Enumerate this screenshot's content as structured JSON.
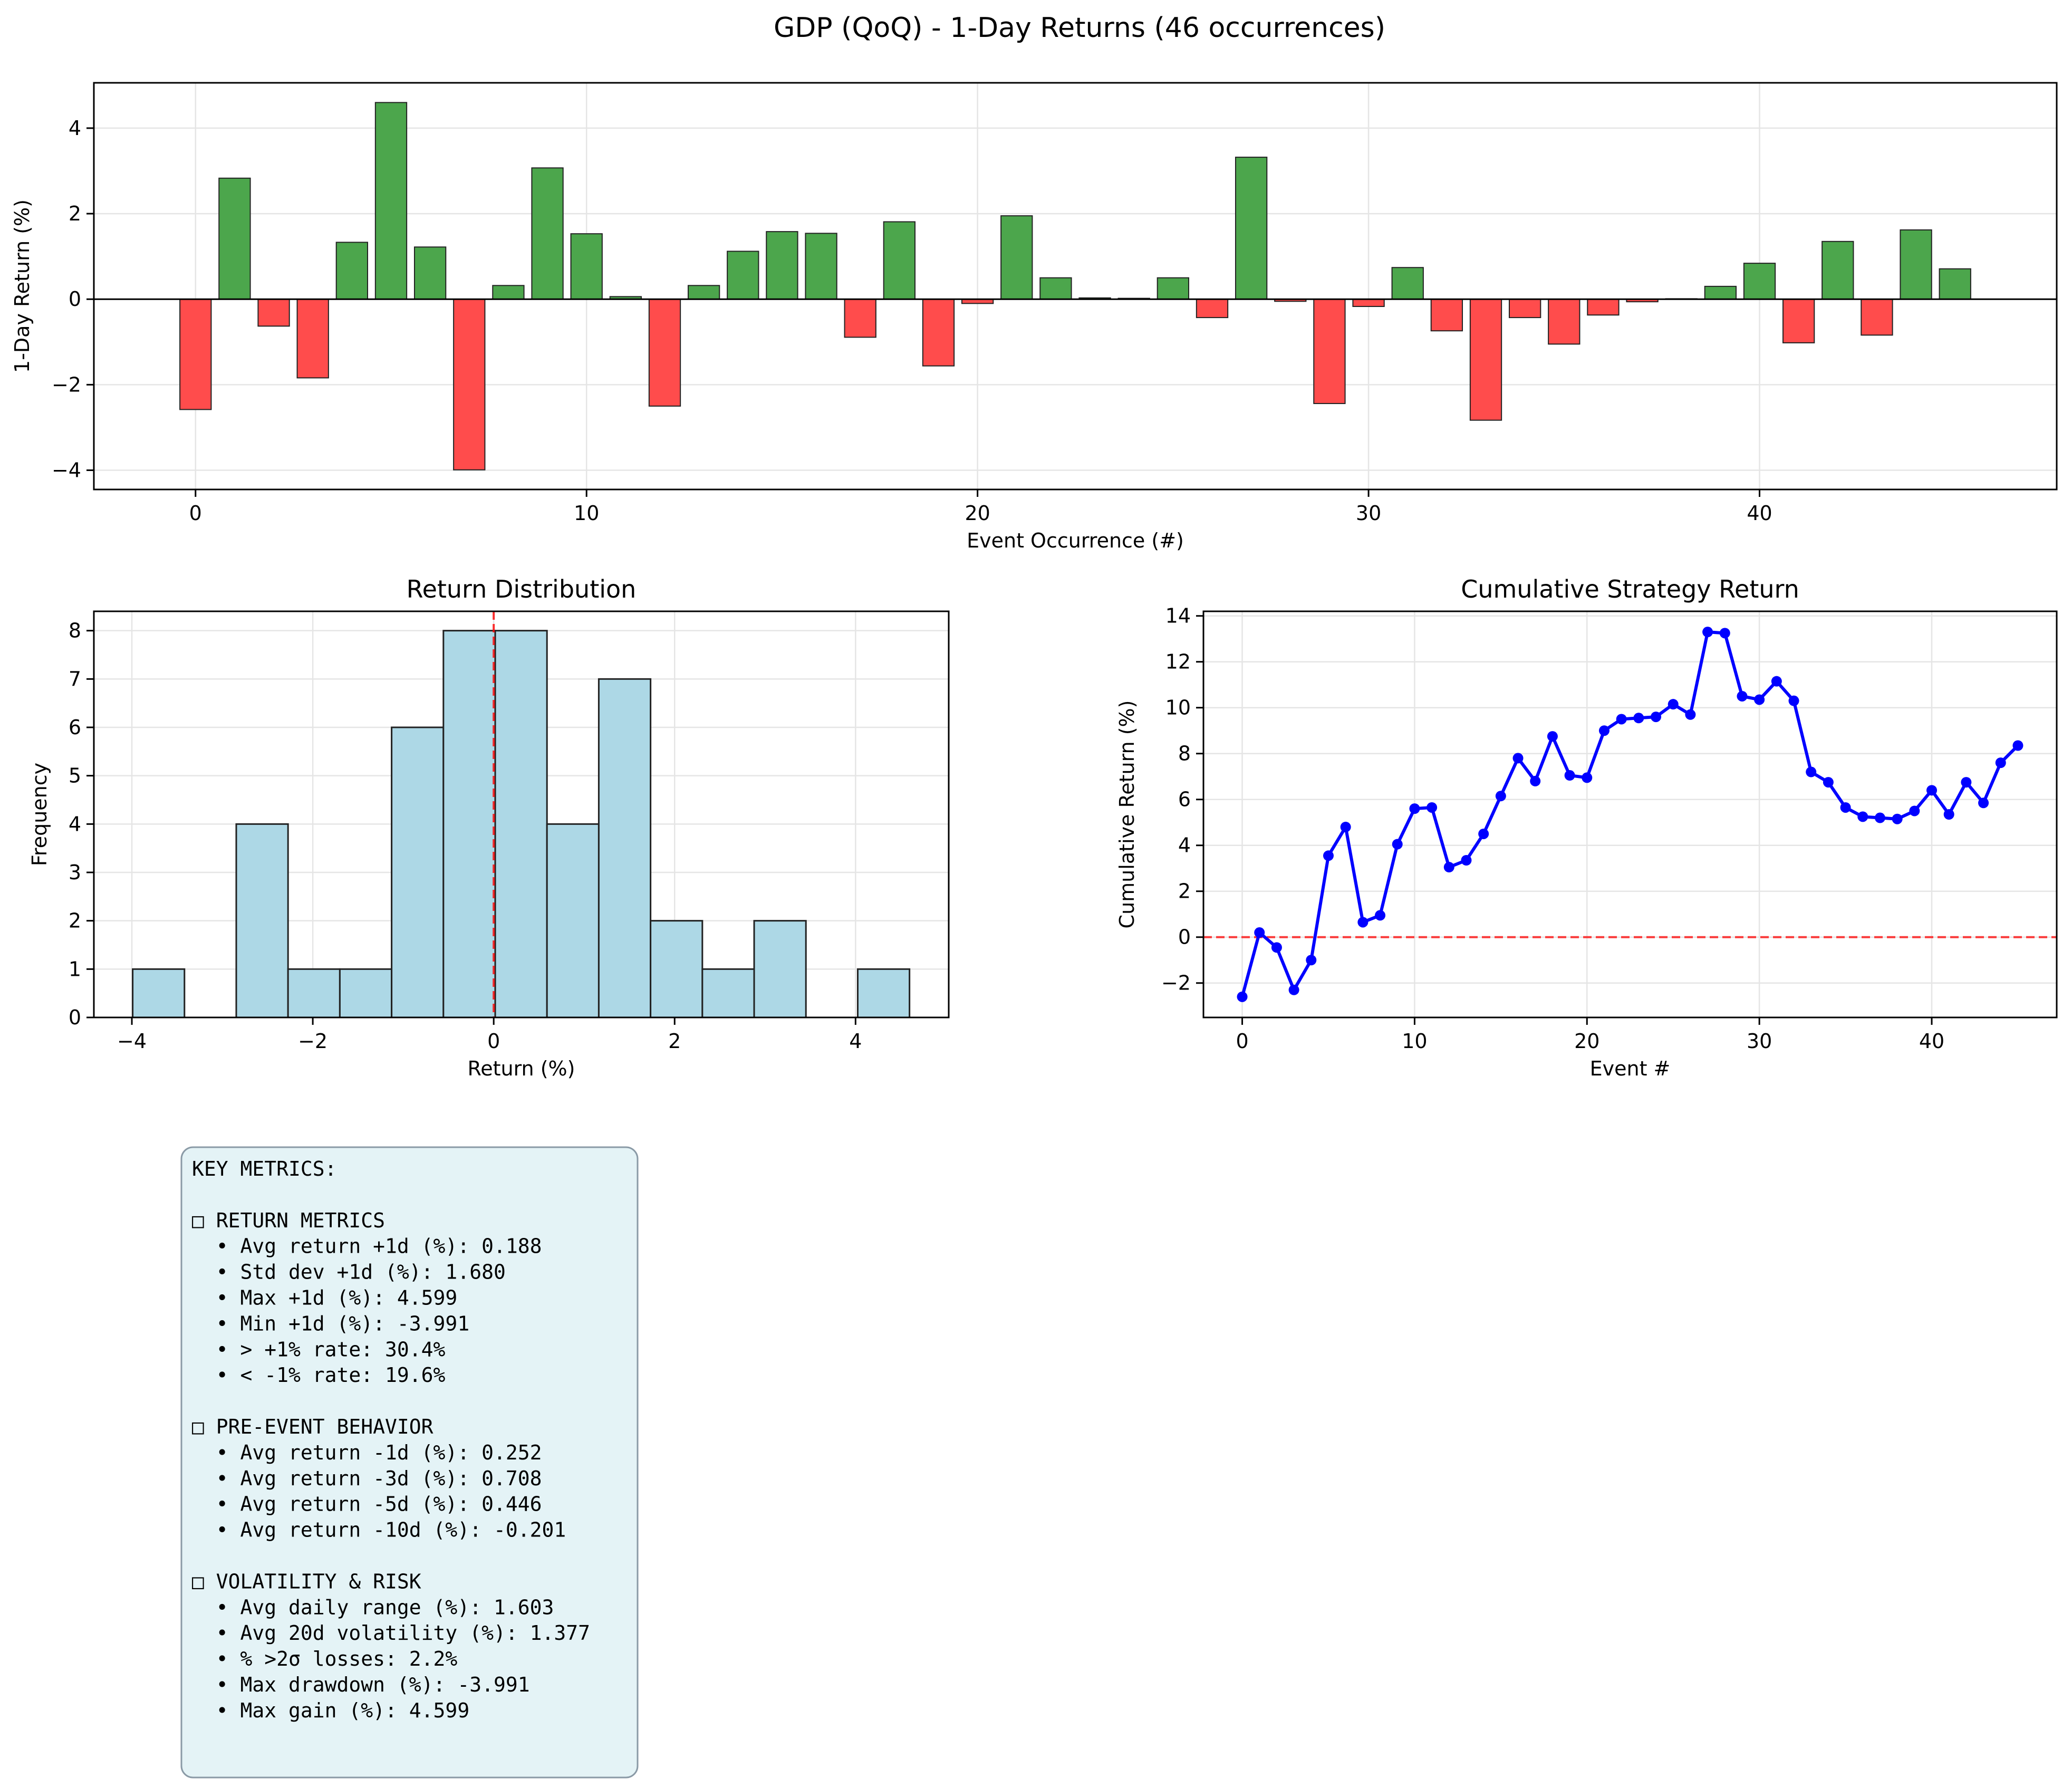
{
  "suptitle": "GDP (QoQ) - 1-Day Returns (46 occurrences)",
  "colors": {
    "positive": "#4ca64c",
    "negative": "#ff4c4c",
    "hist": "#add8e6",
    "line": "#0000ff",
    "ref": "#ff0000",
    "grid": "#e5e5e5",
    "metrics_bg": "#e4f3f6"
  },
  "chart_data": [
    {
      "type": "bar",
      "xlabel": "Event Occurrence (#)",
      "ylabel": "1-Day Return (%)",
      "xlim": [
        -2.6,
        47.6
      ],
      "ylim": [
        -4.45,
        5.06
      ],
      "xticks": [
        0,
        10,
        20,
        30,
        40
      ],
      "yticks": [
        -4,
        -2,
        0,
        2,
        4
      ],
      "x": [
        0,
        1,
        2,
        3,
        4,
        5,
        6,
        7,
        8,
        9,
        10,
        11,
        12,
        13,
        14,
        15,
        16,
        17,
        18,
        19,
        20,
        21,
        22,
        23,
        24,
        25,
        26,
        27,
        28,
        29,
        30,
        31,
        32,
        33,
        34,
        35,
        36,
        37,
        38,
        39,
        40,
        41,
        42,
        43,
        44,
        45
      ],
      "values": [
        -2.58,
        2.83,
        -0.63,
        -1.84,
        1.33,
        4.599,
        1.22,
        -3.991,
        0.32,
        3.07,
        1.53,
        0.06,
        -2.5,
        0.32,
        1.12,
        1.58,
        1.54,
        -0.89,
        1.81,
        -1.56,
        -0.1,
        1.95,
        0.5,
        0.03,
        0.02,
        0.5,
        -0.43,
        3.32,
        -0.05,
        -2.44,
        -0.17,
        0.74,
        -0.74,
        -2.83,
        -0.43,
        -1.05,
        -0.37,
        -0.06,
        0.01,
        0.3,
        0.84,
        -1.02,
        1.35,
        -0.84,
        1.62,
        0.71
      ],
      "grid": true
    },
    {
      "type": "histogram",
      "title": "Return Distribution",
      "xlabel": "Return (%)",
      "ylabel": "Frequency",
      "xlim": [
        -4.42,
        5.03
      ],
      "ylim": [
        0,
        8.4
      ],
      "xticks": [
        -4,
        -2,
        0,
        2,
        4
      ],
      "yticks": [
        0,
        1,
        2,
        3,
        4,
        5,
        6,
        7,
        8
      ],
      "bin_edges": [
        -3.991,
        -3.4185,
        -2.846,
        -2.2735,
        -1.701,
        -1.1285,
        -0.556,
        0.0165,
        0.589,
        1.1615,
        1.734,
        2.3065,
        2.879,
        3.4515,
        4.024,
        4.5965
      ],
      "counts": [
        1,
        0,
        4,
        1,
        1,
        6,
        8,
        8,
        4,
        7,
        2,
        1,
        2,
        0,
        1
      ],
      "vline": 0,
      "grid": true
    },
    {
      "type": "line",
      "title": "Cumulative Strategy Return",
      "xlabel": "Event #",
      "ylabel": "Cumulative Return (%)",
      "xlim": [
        -2.25,
        47.25
      ],
      "ylim": [
        -3.5,
        14.2
      ],
      "xticks": [
        0,
        10,
        20,
        30,
        40
      ],
      "yticks": [
        -2,
        0,
        2,
        4,
        6,
        8,
        10,
        12,
        14
      ],
      "x": [
        0,
        1,
        2,
        3,
        4,
        5,
        6,
        7,
        8,
        9,
        10,
        11,
        12,
        13,
        14,
        15,
        16,
        17,
        18,
        19,
        20,
        21,
        22,
        23,
        24,
        25,
        26,
        27,
        28,
        29,
        30,
        31,
        32,
        33,
        34,
        35,
        36,
        37,
        38,
        39,
        40,
        41,
        42,
        43,
        44,
        45
      ],
      "values": [
        -2.6,
        0.2,
        -0.45,
        -2.3,
        -1.0,
        3.55,
        4.8,
        0.65,
        0.95,
        4.05,
        5.6,
        5.65,
        3.05,
        3.35,
        4.5,
        6.15,
        7.8,
        6.8,
        8.75,
        7.05,
        6.95,
        9.0,
        9.5,
        9.55,
        9.6,
        10.15,
        9.7,
        13.3,
        13.25,
        10.5,
        10.35,
        11.15,
        10.3,
        7.2,
        6.75,
        5.65,
        5.25,
        5.2,
        5.15,
        5.5,
        6.4,
        5.35,
        6.75,
        5.85,
        7.6,
        8.35
      ],
      "hline": 0,
      "grid": true
    }
  ],
  "metrics": {
    "title": "KEY METRICS:",
    "sections": [
      {
        "header": "□ RETURN METRICS",
        "items": [
          "  • Avg return +1d (%): 0.188",
          "  • Std dev +1d (%): 1.680",
          "  • Max +1d (%): 4.599",
          "  • Min +1d (%): -3.991",
          "  • > +1% rate: 30.4%",
          "  • < -1% rate: 19.6%"
        ]
      },
      {
        "header": "□ PRE-EVENT BEHAVIOR",
        "items": [
          "  • Avg return -1d (%): 0.252",
          "  • Avg return -3d (%): 0.708",
          "  • Avg return -5d (%): 0.446",
          "  • Avg return -10d (%): -0.201"
        ]
      },
      {
        "header": "□ VOLATILITY & RISK",
        "items": [
          "  • Avg daily range (%): 1.603",
          "  • Avg 20d volatility (%): 1.377",
          "  • % >2σ losses: 2.2%",
          "  • Max drawdown (%): -3.991",
          "  • Max gain (%): 4.599"
        ]
      }
    ]
  }
}
